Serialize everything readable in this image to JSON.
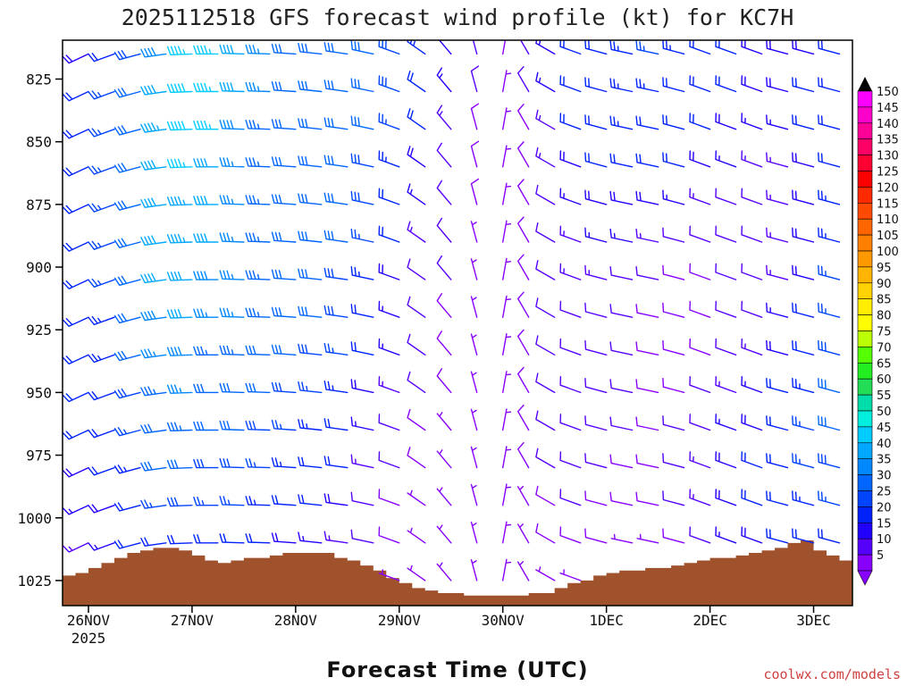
{
  "chart_data": {
    "type": "wind-barb-profile",
    "title": "2025112518 GFS forecast wind profile (kt) for KC7H",
    "xlabel": "Forecast Time (UTC)",
    "credit": "coolwx.com/models",
    "x_ticks": [
      {
        "label": "26NOV",
        "sub": "2025",
        "hours": 6
      },
      {
        "label": "27NOV",
        "sub": "",
        "hours": 30
      },
      {
        "label": "28NOV",
        "sub": "",
        "hours": 54
      },
      {
        "label": "29NOV",
        "sub": "",
        "hours": 78
      },
      {
        "label": "30NOV",
        "sub": "",
        "hours": 102
      },
      {
        "label": "1DEC",
        "sub": "",
        "hours": 126
      },
      {
        "label": "2DEC",
        "sub": "",
        "hours": 150
      },
      {
        "label": "3DEC",
        "sub": "",
        "hours": 174
      }
    ],
    "x_range_hours": [
      0,
      183
    ],
    "y_ticks": [
      {
        "label": "825",
        "value": 825
      },
      {
        "label": "850",
        "value": 850
      },
      {
        "label": "875",
        "value": 875
      },
      {
        "label": "900",
        "value": 900
      },
      {
        "label": "925",
        "value": 925
      },
      {
        "label": "950",
        "value": 950
      },
      {
        "label": "975",
        "value": 975
      },
      {
        "label": "1000",
        "value": 1000
      },
      {
        "label": "1025",
        "value": 1025
      }
    ],
    "y_range_hPa": [
      809.5,
      1035
    ],
    "levels_hPa": [
      815,
      830,
      845,
      860,
      875,
      890,
      905,
      920,
      935,
      950,
      965,
      980,
      995,
      1010,
      1025
    ],
    "colorbar": {
      "ticks": [
        "150",
        "145",
        "140",
        "135",
        "130",
        "125",
        "120",
        "115",
        "110",
        "105",
        "100",
        "95",
        "90",
        "85",
        "80",
        "75",
        "70",
        "65",
        "60",
        "55",
        "50",
        "45",
        "40",
        "35",
        "30",
        "25",
        "20",
        "15",
        "10",
        "5"
      ],
      "colors": [
        "#ff00ff",
        "#ff00cc",
        "#ff0099",
        "#ff0066",
        "#ff0033",
        "#ff0000",
        "#ff2a00",
        "#ff4a00",
        "#ff6600",
        "#ff7f00",
        "#ff9900",
        "#ffb400",
        "#ffd200",
        "#ffee00",
        "#ffff00",
        "#bbff00",
        "#55ff00",
        "#22ee22",
        "#22dd55",
        "#00ddaa",
        "#00eedd",
        "#00ccff",
        "#00a8ff",
        "#0088ff",
        "#0066ff",
        "#0044ff",
        "#0022ff",
        "#2200ff",
        "#5500ff",
        "#8800ff"
      ]
    },
    "forecast_hours": [
      0,
      6,
      12,
      18,
      24,
      30,
      36,
      42,
      48,
      54,
      60,
      66,
      72,
      78,
      84,
      90,
      96,
      102,
      108,
      114,
      120,
      126,
      132,
      138,
      144,
      150,
      156,
      162,
      168,
      174,
      180
    ],
    "wind_speed_kt": [
      [
        18,
        18,
        22,
        28,
        38,
        46,
        46,
        40,
        36,
        32,
        32,
        30,
        30,
        28,
        24,
        18,
        10,
        5,
        10,
        16,
        20,
        22,
        24,
        26,
        24,
        22,
        20,
        18,
        18,
        18,
        20
      ],
      [
        20,
        22,
        26,
        32,
        42,
        48,
        46,
        40,
        36,
        32,
        32,
        30,
        30,
        28,
        22,
        16,
        10,
        5,
        10,
        16,
        20,
        22,
        24,
        24,
        22,
        22,
        20,
        18,
        18,
        20,
        22
      ],
      [
        20,
        22,
        26,
        32,
        44,
        48,
        46,
        38,
        34,
        30,
        30,
        30,
        30,
        26,
        20,
        14,
        8,
        5,
        8,
        14,
        20,
        22,
        24,
        22,
        22,
        20,
        18,
        16,
        16,
        20,
        22
      ],
      [
        20,
        22,
        26,
        32,
        42,
        46,
        42,
        36,
        34,
        30,
        30,
        30,
        28,
        24,
        18,
        12,
        8,
        5,
        8,
        14,
        18,
        20,
        20,
        20,
        20,
        18,
        16,
        14,
        14,
        18,
        22
      ],
      [
        20,
        22,
        26,
        32,
        42,
        44,
        40,
        36,
        34,
        32,
        30,
        30,
        28,
        22,
        16,
        12,
        8,
        5,
        8,
        12,
        16,
        18,
        18,
        18,
        16,
        14,
        12,
        12,
        14,
        18,
        24
      ],
      [
        20,
        22,
        26,
        32,
        40,
        44,
        40,
        36,
        34,
        32,
        30,
        30,
        26,
        20,
        14,
        10,
        6,
        5,
        8,
        12,
        14,
        16,
        16,
        14,
        12,
        10,
        10,
        10,
        14,
        18,
        24
      ],
      [
        20,
        22,
        26,
        32,
        40,
        42,
        38,
        36,
        34,
        32,
        30,
        28,
        24,
        18,
        12,
        10,
        6,
        5,
        8,
        12,
        14,
        14,
        12,
        10,
        8,
        8,
        10,
        12,
        14,
        18,
        26
      ],
      [
        20,
        22,
        24,
        30,
        38,
        40,
        36,
        36,
        34,
        32,
        30,
        28,
        22,
        16,
        12,
        8,
        6,
        5,
        8,
        10,
        12,
        12,
        10,
        8,
        8,
        8,
        10,
        12,
        16,
        20,
        26
      ],
      [
        20,
        22,
        24,
        30,
        36,
        38,
        34,
        34,
        32,
        30,
        28,
        26,
        20,
        16,
        10,
        8,
        6,
        5,
        8,
        10,
        12,
        12,
        10,
        8,
        8,
        8,
        12,
        14,
        18,
        22,
        28
      ],
      [
        18,
        20,
        22,
        28,
        34,
        36,
        32,
        32,
        30,
        28,
        26,
        24,
        18,
        14,
        10,
        8,
        6,
        5,
        8,
        10,
        12,
        12,
        10,
        8,
        8,
        10,
        14,
        16,
        20,
        24,
        30
      ],
      [
        18,
        20,
        22,
        26,
        32,
        34,
        30,
        30,
        28,
        26,
        24,
        22,
        16,
        12,
        8,
        6,
        6,
        5,
        8,
        10,
        12,
        12,
        10,
        8,
        10,
        12,
        16,
        18,
        22,
        26,
        30
      ],
      [
        16,
        18,
        20,
        24,
        30,
        32,
        28,
        28,
        26,
        24,
        22,
        20,
        14,
        10,
        8,
        6,
        5,
        5,
        8,
        10,
        12,
        10,
        8,
        8,
        10,
        14,
        18,
        20,
        22,
        26,
        28
      ],
      [
        14,
        16,
        18,
        22,
        26,
        28,
        26,
        26,
        24,
        22,
        20,
        18,
        12,
        8,
        6,
        5,
        5,
        5,
        6,
        8,
        10,
        8,
        8,
        8,
        10,
        14,
        18,
        20,
        22,
        24,
        26
      ],
      [
        12,
        14,
        16,
        20,
        22,
        22,
        22,
        22,
        20,
        18,
        16,
        14,
        10,
        8,
        5,
        5,
        5,
        5,
        6,
        8,
        8,
        8,
        6,
        6,
        8,
        12,
        16,
        18,
        20,
        22,
        22
      ],
      [
        10,
        12,
        14,
        16,
        18,
        18,
        18,
        18,
        16,
        14,
        12,
        10,
        8,
        6,
        5,
        5,
        5,
        5,
        5,
        6,
        6,
        6,
        5,
        5,
        6,
        10,
        12,
        14,
        16,
        18,
        18
      ]
    ],
    "wind_dir_deg": [
      [
        240,
        245,
        250,
        255,
        262,
        268,
        270,
        272,
        272,
        274,
        276,
        278,
        282,
        290,
        305,
        320,
        345,
        10,
        330,
        300,
        290,
        285,
        282,
        282,
        285,
        290,
        290,
        290,
        285,
        285,
        285
      ],
      [
        240,
        245,
        250,
        255,
        262,
        268,
        270,
        272,
        272,
        274,
        276,
        278,
        282,
        290,
        305,
        320,
        345,
        10,
        330,
        300,
        290,
        285,
        282,
        282,
        285,
        290,
        290,
        290,
        285,
        285,
        285
      ],
      [
        240,
        245,
        250,
        255,
        262,
        268,
        270,
        272,
        272,
        274,
        276,
        278,
        282,
        290,
        305,
        320,
        345,
        10,
        330,
        300,
        290,
        285,
        282,
        282,
        285,
        290,
        290,
        290,
        285,
        285,
        285
      ],
      [
        240,
        245,
        250,
        255,
        262,
        268,
        270,
        272,
        272,
        274,
        276,
        278,
        282,
        290,
        305,
        320,
        345,
        10,
        330,
        300,
        290,
        285,
        282,
        282,
        285,
        290,
        290,
        290,
        285,
        285,
        285
      ],
      [
        240,
        245,
        250,
        255,
        262,
        268,
        270,
        272,
        272,
        274,
        276,
        278,
        282,
        290,
        305,
        320,
        345,
        10,
        330,
        300,
        290,
        285,
        282,
        282,
        285,
        290,
        290,
        290,
        285,
        285,
        285
      ],
      [
        240,
        245,
        250,
        255,
        262,
        268,
        270,
        272,
        272,
        274,
        276,
        278,
        282,
        290,
        305,
        320,
        345,
        10,
        330,
        300,
        290,
        285,
        282,
        282,
        285,
        290,
        290,
        290,
        285,
        285,
        285
      ],
      [
        240,
        245,
        250,
        255,
        262,
        268,
        270,
        272,
        272,
        274,
        276,
        278,
        282,
        290,
        305,
        320,
        345,
        10,
        330,
        300,
        290,
        285,
        282,
        282,
        285,
        290,
        290,
        290,
        285,
        285,
        285
      ],
      [
        240,
        245,
        250,
        255,
        262,
        268,
        270,
        272,
        272,
        274,
        276,
        278,
        282,
        290,
        305,
        320,
        345,
        10,
        330,
        300,
        290,
        285,
        282,
        282,
        285,
        290,
        290,
        290,
        285,
        285,
        285
      ],
      [
        240,
        245,
        250,
        255,
        262,
        268,
        270,
        272,
        272,
        274,
        276,
        278,
        282,
        290,
        305,
        320,
        345,
        10,
        330,
        300,
        290,
        285,
        282,
        282,
        285,
        290,
        290,
        290,
        285,
        285,
        285
      ],
      [
        240,
        245,
        250,
        255,
        262,
        268,
        270,
        272,
        272,
        274,
        276,
        278,
        282,
        290,
        305,
        320,
        345,
        10,
        330,
        300,
        290,
        285,
        282,
        282,
        285,
        290,
        290,
        290,
        285,
        285,
        285
      ],
      [
        240,
        245,
        250,
        255,
        262,
        268,
        270,
        272,
        272,
        274,
        276,
        278,
        282,
        290,
        305,
        320,
        345,
        10,
        330,
        300,
        290,
        285,
        282,
        282,
        285,
        290,
        290,
        290,
        285,
        285,
        285
      ],
      [
        240,
        245,
        250,
        255,
        262,
        268,
        270,
        272,
        272,
        274,
        276,
        278,
        282,
        290,
        305,
        320,
        345,
        10,
        330,
        300,
        290,
        285,
        282,
        282,
        285,
        290,
        290,
        290,
        285,
        285,
        285
      ],
      [
        240,
        245,
        250,
        255,
        262,
        268,
        270,
        272,
        272,
        274,
        276,
        278,
        282,
        290,
        305,
        320,
        345,
        10,
        330,
        300,
        290,
        285,
        282,
        282,
        285,
        290,
        290,
        290,
        285,
        285,
        285
      ],
      [
        240,
        245,
        250,
        255,
        262,
        268,
        270,
        272,
        272,
        274,
        276,
        278,
        282,
        290,
        305,
        320,
        345,
        10,
        330,
        300,
        290,
        285,
        282,
        282,
        285,
        290,
        290,
        290,
        285,
        285,
        285
      ],
      [
        240,
        245,
        250,
        255,
        262,
        268,
        270,
        272,
        272,
        274,
        276,
        278,
        282,
        290,
        305,
        320,
        345,
        10,
        330,
        300,
        290,
        285,
        282,
        282,
        285,
        290,
        290,
        290,
        285,
        285,
        285
      ]
    ],
    "surface_pressure_hPa": {
      "hours": [
        0,
        3,
        6,
        9,
        12,
        15,
        18,
        21,
        24,
        27,
        30,
        33,
        36,
        39,
        42,
        45,
        48,
        51,
        54,
        57,
        60,
        63,
        66,
        69,
        72,
        75,
        78,
        81,
        84,
        87,
        90,
        93,
        96,
        99,
        102,
        105,
        108,
        111,
        114,
        117,
        120,
        123,
        126,
        129,
        132,
        135,
        138,
        141,
        144,
        147,
        150,
        153,
        156,
        159,
        162,
        165,
        168,
        171,
        174,
        177,
        180,
        183
      ],
      "values": [
        1023,
        1022,
        1020,
        1018,
        1016,
        1014,
        1013,
        1012,
        1012,
        1013,
        1015,
        1017,
        1018,
        1017,
        1016,
        1016,
        1015,
        1014,
        1014,
        1014,
        1014,
        1016,
        1017,
        1019,
        1021,
        1024,
        1026,
        1028,
        1029,
        1030,
        1030,
        1031,
        1031,
        1031,
        1031,
        1031,
        1030,
        1030,
        1028,
        1026,
        1025,
        1023,
        1022,
        1021,
        1021,
        1020,
        1020,
        1019,
        1018,
        1017,
        1016,
        1016,
        1015,
        1014,
        1013,
        1012,
        1010,
        1009,
        1013,
        1015,
        1017,
        1019
      ]
    },
    "barb_color_scale_kt": [
      5,
      10,
      15,
      20,
      25,
      30,
      35,
      40,
      45,
      50,
      55,
      60,
      65,
      70,
      75,
      80
    ]
  }
}
